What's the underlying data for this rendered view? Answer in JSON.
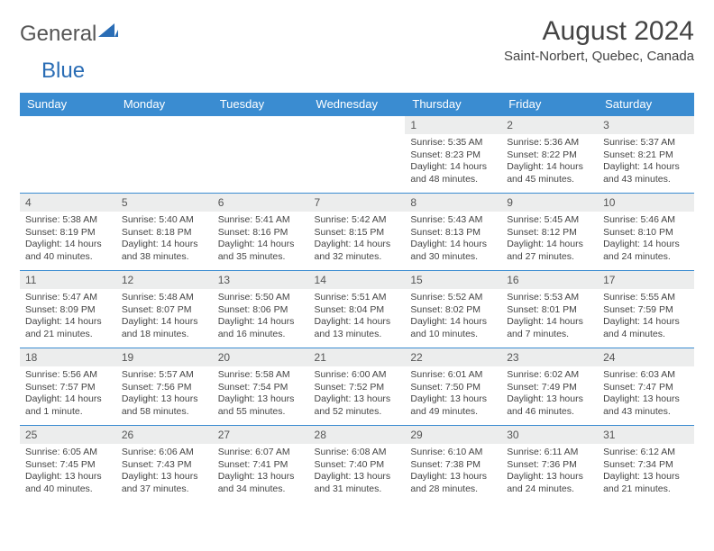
{
  "logo": {
    "word1": "General",
    "word2": "Blue",
    "shape_color": "#2a6db5"
  },
  "title": "August 2024",
  "subtitle": "Saint-Norbert, Quebec, Canada",
  "colors": {
    "header_bg": "#3a8cd1",
    "header_text": "#ffffff",
    "daynum_bg": "#eceded",
    "row_border": "#3a8cd1",
    "body_text": "#444444"
  },
  "day_headers": [
    "Sunday",
    "Monday",
    "Tuesday",
    "Wednesday",
    "Thursday",
    "Friday",
    "Saturday"
  ],
  "weeks": [
    [
      {
        "empty": true
      },
      {
        "empty": true
      },
      {
        "empty": true
      },
      {
        "empty": true
      },
      {
        "n": "1",
        "sunrise": "5:35 AM",
        "sunset": "8:23 PM",
        "daylight": "14 hours and 48 minutes."
      },
      {
        "n": "2",
        "sunrise": "5:36 AM",
        "sunset": "8:22 PM",
        "daylight": "14 hours and 45 minutes."
      },
      {
        "n": "3",
        "sunrise": "5:37 AM",
        "sunset": "8:21 PM",
        "daylight": "14 hours and 43 minutes."
      }
    ],
    [
      {
        "n": "4",
        "sunrise": "5:38 AM",
        "sunset": "8:19 PM",
        "daylight": "14 hours and 40 minutes."
      },
      {
        "n": "5",
        "sunrise": "5:40 AM",
        "sunset": "8:18 PM",
        "daylight": "14 hours and 38 minutes."
      },
      {
        "n": "6",
        "sunrise": "5:41 AM",
        "sunset": "8:16 PM",
        "daylight": "14 hours and 35 minutes."
      },
      {
        "n": "7",
        "sunrise": "5:42 AM",
        "sunset": "8:15 PM",
        "daylight": "14 hours and 32 minutes."
      },
      {
        "n": "8",
        "sunrise": "5:43 AM",
        "sunset": "8:13 PM",
        "daylight": "14 hours and 30 minutes."
      },
      {
        "n": "9",
        "sunrise": "5:45 AM",
        "sunset": "8:12 PM",
        "daylight": "14 hours and 27 minutes."
      },
      {
        "n": "10",
        "sunrise": "5:46 AM",
        "sunset": "8:10 PM",
        "daylight": "14 hours and 24 minutes."
      }
    ],
    [
      {
        "n": "11",
        "sunrise": "5:47 AM",
        "sunset": "8:09 PM",
        "daylight": "14 hours and 21 minutes."
      },
      {
        "n": "12",
        "sunrise": "5:48 AM",
        "sunset": "8:07 PM",
        "daylight": "14 hours and 18 minutes."
      },
      {
        "n": "13",
        "sunrise": "5:50 AM",
        "sunset": "8:06 PM",
        "daylight": "14 hours and 16 minutes."
      },
      {
        "n": "14",
        "sunrise": "5:51 AM",
        "sunset": "8:04 PM",
        "daylight": "14 hours and 13 minutes."
      },
      {
        "n": "15",
        "sunrise": "5:52 AM",
        "sunset": "8:02 PM",
        "daylight": "14 hours and 10 minutes."
      },
      {
        "n": "16",
        "sunrise": "5:53 AM",
        "sunset": "8:01 PM",
        "daylight": "14 hours and 7 minutes."
      },
      {
        "n": "17",
        "sunrise": "5:55 AM",
        "sunset": "7:59 PM",
        "daylight": "14 hours and 4 minutes."
      }
    ],
    [
      {
        "n": "18",
        "sunrise": "5:56 AM",
        "sunset": "7:57 PM",
        "daylight": "14 hours and 1 minute."
      },
      {
        "n": "19",
        "sunrise": "5:57 AM",
        "sunset": "7:56 PM",
        "daylight": "13 hours and 58 minutes."
      },
      {
        "n": "20",
        "sunrise": "5:58 AM",
        "sunset": "7:54 PM",
        "daylight": "13 hours and 55 minutes."
      },
      {
        "n": "21",
        "sunrise": "6:00 AM",
        "sunset": "7:52 PM",
        "daylight": "13 hours and 52 minutes."
      },
      {
        "n": "22",
        "sunrise": "6:01 AM",
        "sunset": "7:50 PM",
        "daylight": "13 hours and 49 minutes."
      },
      {
        "n": "23",
        "sunrise": "6:02 AM",
        "sunset": "7:49 PM",
        "daylight": "13 hours and 46 minutes."
      },
      {
        "n": "24",
        "sunrise": "6:03 AM",
        "sunset": "7:47 PM",
        "daylight": "13 hours and 43 minutes."
      }
    ],
    [
      {
        "n": "25",
        "sunrise": "6:05 AM",
        "sunset": "7:45 PM",
        "daylight": "13 hours and 40 minutes."
      },
      {
        "n": "26",
        "sunrise": "6:06 AM",
        "sunset": "7:43 PM",
        "daylight": "13 hours and 37 minutes."
      },
      {
        "n": "27",
        "sunrise": "6:07 AM",
        "sunset": "7:41 PM",
        "daylight": "13 hours and 34 minutes."
      },
      {
        "n": "28",
        "sunrise": "6:08 AM",
        "sunset": "7:40 PM",
        "daylight": "13 hours and 31 minutes."
      },
      {
        "n": "29",
        "sunrise": "6:10 AM",
        "sunset": "7:38 PM",
        "daylight": "13 hours and 28 minutes."
      },
      {
        "n": "30",
        "sunrise": "6:11 AM",
        "sunset": "7:36 PM",
        "daylight": "13 hours and 24 minutes."
      },
      {
        "n": "31",
        "sunrise": "6:12 AM",
        "sunset": "7:34 PM",
        "daylight": "13 hours and 21 minutes."
      }
    ]
  ],
  "labels": {
    "sunrise": "Sunrise:",
    "sunset": "Sunset:",
    "daylight": "Daylight:"
  }
}
